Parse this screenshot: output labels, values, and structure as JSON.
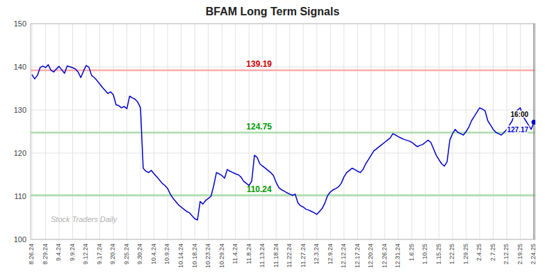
{
  "chart_data": {
    "type": "line",
    "title": "BFAM Long Term Signals",
    "categories": [
      "8.26.24",
      null,
      null,
      null,
      null,
      "8.29.24",
      null,
      null,
      null,
      null,
      "9.4.24",
      null,
      null,
      null,
      null,
      "9.9.24",
      null,
      null,
      null,
      null,
      "9.12.24",
      null,
      null,
      null,
      null,
      "9.17.24",
      null,
      null,
      null,
      null,
      "9.20.24",
      null,
      null,
      null,
      null,
      "9.25.24",
      null,
      null,
      null,
      null,
      "9.30.24",
      null,
      null,
      null,
      null,
      "10.4.24",
      null,
      null,
      null,
      null,
      "10.9.24",
      null,
      null,
      null,
      null,
      "10.14.24",
      null,
      null,
      null,
      null,
      "10.18.24",
      null,
      null,
      null,
      null,
      "10.23.24",
      null,
      null,
      null,
      null,
      "10.29.24",
      null,
      null,
      null,
      null,
      "11.4.24",
      null,
      null,
      null,
      null,
      "11.8.24",
      null,
      null,
      null,
      null,
      "11.13.24",
      null,
      null,
      null,
      null,
      "11.18.24",
      null,
      null,
      null,
      null,
      "11.22.24",
      null,
      null,
      null,
      null,
      "11.27.24",
      null,
      null,
      null,
      null,
      "12.3.24",
      null,
      null,
      null,
      null,
      "12.9.24",
      null,
      null,
      null,
      null,
      "12.12.24",
      null,
      null,
      null,
      null,
      "12.17.24",
      null,
      null,
      null,
      null,
      "12.20.24",
      null,
      null,
      null,
      null,
      "12.26.24",
      null,
      null,
      null,
      null,
      "12.31.24",
      null,
      null,
      null,
      null,
      "1.6.25",
      null,
      null,
      null,
      null,
      "1.10.25",
      null,
      null,
      null,
      null,
      "1.15.25",
      null,
      null,
      null,
      null,
      "1.22.25",
      null,
      null,
      null,
      null,
      "1.29.25",
      null,
      null,
      null,
      null,
      "2.4.25",
      null,
      null,
      null,
      null,
      "2.7.25",
      null,
      null,
      null,
      null,
      "2.12.25",
      null,
      null,
      null,
      null,
      "2.19.25",
      null,
      null,
      null,
      null,
      "2.24.25"
    ],
    "values": [
      138.2,
      137.2,
      138.0,
      139.8,
      140.2,
      139.8,
      140.5,
      139.2,
      138.8,
      139.5,
      140.1,
      139.3,
      138.5,
      140.2,
      140.0,
      139.8,
      139.5,
      138.8,
      137.5,
      139.0,
      140.3,
      139.9,
      138.0,
      137.5,
      136.8,
      136.0,
      135.2,
      134.5,
      133.8,
      134.2,
      133.5,
      131.2,
      131.0,
      130.5,
      130.8,
      130.3,
      133.2,
      132.8,
      132.5,
      131.8,
      130.5,
      116.5,
      115.8,
      115.5,
      116.0,
      115.2,
      114.5,
      113.8,
      113.0,
      112.5,
      111.8,
      110.5,
      109.5,
      108.8,
      108.0,
      107.5,
      107.0,
      106.5,
      106.2,
      105.5,
      104.8,
      104.5,
      108.8,
      108.2,
      109.0,
      109.5,
      110.0,
      112.5,
      115.5,
      115.2,
      114.8,
      114.2,
      116.2,
      115.8,
      115.5,
      115.2,
      115.0,
      114.5,
      113.5,
      113.0,
      112.5,
      113.5,
      119.5,
      119.0,
      117.5,
      117.0,
      116.5,
      116.0,
      115.5,
      114.8,
      113.2,
      112.0,
      111.5,
      111.2,
      110.8,
      110.5,
      110.2,
      110.5,
      108.5,
      107.8,
      107.5,
      107.0,
      106.8,
      106.5,
      106.2,
      105.8,
      106.5,
      107.2,
      108.5,
      110.2,
      111.0,
      111.5,
      111.8,
      112.2,
      113.0,
      114.5,
      115.5,
      116.0,
      116.5,
      116.2,
      115.8,
      115.5,
      116.2,
      117.5,
      118.5,
      119.5,
      120.5,
      121.0,
      121.5,
      122.0,
      122.5,
      123.0,
      123.5,
      124.5,
      124.2,
      123.8,
      123.5,
      123.2,
      123.0,
      122.8,
      122.5,
      122.0,
      121.5,
      121.8,
      122.0,
      122.5,
      123.0,
      122.5,
      121.0,
      119.5,
      118.5,
      117.5,
      117.0,
      118.0,
      123.0,
      124.5,
      125.5,
      124.8,
      124.5,
      124.2,
      125.0,
      126.0,
      127.5,
      128.5,
      129.5,
      130.5,
      130.2,
      129.8,
      127.5,
      126.5,
      125.5,
      124.8,
      124.5,
      124.2,
      124.8,
      125.5,
      126.5,
      127.5,
      129.5,
      130.0,
      130.5,
      128.5,
      127.5,
      126.5,
      125.5,
      127.17
    ],
    "color": "#0000cc",
    "hlines": [
      {
        "value": 139.19,
        "label": "139.19",
        "color": "#ffaaaa",
        "label_color": "#cc0000"
      },
      {
        "value": 124.75,
        "label": "124.75",
        "color": "#aaddaa",
        "label_color": "#009900"
      },
      {
        "value": 110.24,
        "label": "110.24",
        "color": "#aaddaa",
        "label_color": "#009900"
      }
    ],
    "last_point": {
      "label": "16:00",
      "value": 127.17,
      "value_label": "127.17"
    },
    "watermark": "Stock Traders Daily",
    "ylim": [
      100,
      150
    ],
    "yticks": [
      100,
      110,
      120,
      130,
      140,
      150
    ],
    "grid": true
  }
}
